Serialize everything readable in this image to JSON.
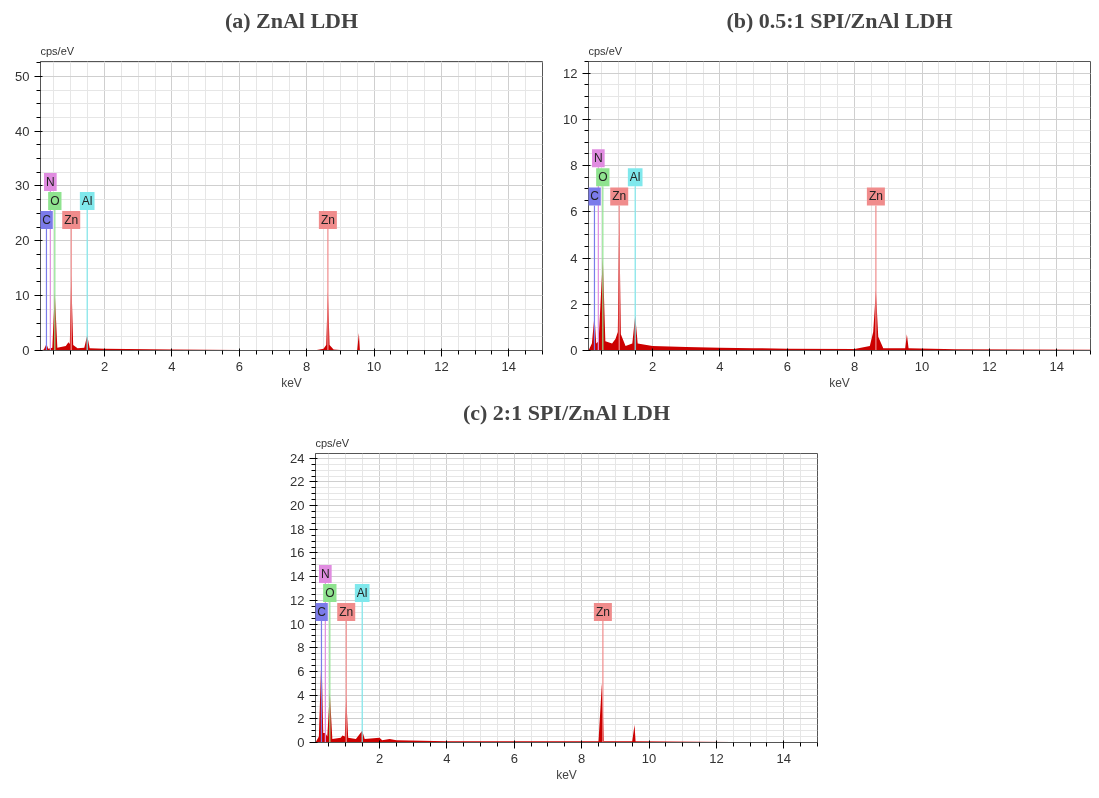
{
  "chart_data": [
    {
      "type": "area",
      "title": "(a) ZnAl LDH",
      "xlabel": "keV",
      "ylabel": "cps/eV",
      "xlim": [
        0.1,
        15
      ],
      "ylim": [
        0,
        52.7
      ],
      "xticks": [
        2,
        4,
        6,
        8,
        10,
        12,
        14
      ],
      "yticks": [
        0,
        10,
        20,
        30,
        40,
        50
      ],
      "grid": true,
      "series": [
        {
          "color": "#cc0000",
          "x": [
            0.1,
            0.2,
            0.277,
            0.33,
            0.45,
            0.525,
            0.6,
            0.85,
            0.93,
            0.97,
            1.012,
            1.07,
            1.2,
            1.4,
            1.486,
            1.56,
            2,
            4,
            6,
            8.3,
            8.5,
            8.58,
            8.63,
            8.68,
            8.8,
            9.0,
            9.5,
            9.55,
            9.58,
            12,
            15
          ],
          "values": [
            0,
            0.2,
            1.2,
            0.3,
            0.5,
            10.5,
            0.5,
            0.8,
            1.5,
            1.2,
            13.8,
            1.0,
            0.4,
            0.5,
            2.8,
            0.4,
            0.3,
            0.2,
            0.1,
            0.1,
            0.3,
            1.0,
            10.8,
            1.0,
            0.2,
            0.1,
            0.1,
            3.2,
            0.1,
            0.1,
            0.1
          ]
        }
      ],
      "ref_lines": [
        {
          "axis": "x",
          "value": 0.277,
          "label": "C",
          "color": "#7b7bea"
        },
        {
          "axis": "x",
          "value": 0.525,
          "label": "O",
          "color": "#8fe38f"
        },
        {
          "axis": "x",
          "value": 0.392,
          "label": "N",
          "color": "#e08ce0"
        },
        {
          "axis": "x",
          "value": 1.012,
          "label": "Zn",
          "color": "#f08c8c"
        },
        {
          "axis": "x",
          "value": 1.486,
          "label": "Al",
          "color": "#80e8ec"
        },
        {
          "axis": "x",
          "value": 8.63,
          "label": "Zn",
          "color": "#f08c8c"
        }
      ]
    },
    {
      "type": "area",
      "title": "(b) 0.5:1 SPI/ZnAl LDH",
      "xlabel": "keV",
      "ylabel": "cps/eV",
      "xlim": [
        0.1,
        15
      ],
      "ylim": [
        0,
        12.5
      ],
      "xticks": [
        2,
        4,
        6,
        8,
        10,
        12,
        14
      ],
      "yticks": [
        0,
        2,
        4,
        6,
        8,
        10,
        12
      ],
      "grid": true,
      "series": [
        {
          "color": "#cc0000",
          "x": [
            0.1,
            0.2,
            0.277,
            0.33,
            0.4,
            0.525,
            0.6,
            0.8,
            0.9,
            0.97,
            1.012,
            1.06,
            1.2,
            1.4,
            1.486,
            1.56,
            2,
            3,
            4,
            5,
            6,
            8,
            8.45,
            8.55,
            8.63,
            8.7,
            8.85,
            9.5,
            9.55,
            9.6,
            11,
            15
          ],
          "values": [
            0,
            0.3,
            1.5,
            0.3,
            0.4,
            4.0,
            0.4,
            0.3,
            0.5,
            0.8,
            5.9,
            0.7,
            0.2,
            0.3,
            1.5,
            0.3,
            0.2,
            0.15,
            0.12,
            0.1,
            0.08,
            0.07,
            0.2,
            0.8,
            2.6,
            0.6,
            0.1,
            0.1,
            0.7,
            0.1,
            0.05,
            0.03
          ]
        }
      ],
      "ref_lines": [
        {
          "axis": "x",
          "value": 0.277,
          "label": "C",
          "color": "#7b7bea"
        },
        {
          "axis": "x",
          "value": 0.525,
          "label": "O",
          "color": "#8fe38f"
        },
        {
          "axis": "x",
          "value": 0.392,
          "label": "N",
          "color": "#e08ce0"
        },
        {
          "axis": "x",
          "value": 1.012,
          "label": "Zn",
          "color": "#f08c8c"
        },
        {
          "axis": "x",
          "value": 1.486,
          "label": "Al",
          "color": "#80e8ec"
        },
        {
          "axis": "x",
          "value": 8.63,
          "label": "Zn",
          "color": "#f08c8c"
        }
      ]
    },
    {
      "type": "area",
      "title": "(c) 2:1 SPI/ZnAl LDH",
      "xlabel": "keV",
      "ylabel": "cps/eV",
      "xlim": [
        0.1,
        15
      ],
      "ylim": [
        0,
        24.4
      ],
      "xticks": [
        2,
        4,
        6,
        8,
        10,
        12,
        14
      ],
      "yticks": [
        0,
        2,
        4,
        6,
        8,
        10,
        12,
        14,
        16,
        18,
        20,
        22,
        24
      ],
      "grid": true,
      "series": [
        {
          "color": "#cc0000",
          "x": [
            0.1,
            0.2,
            0.277,
            0.33,
            0.392,
            0.45,
            0.525,
            0.6,
            0.85,
            0.9,
            0.97,
            1.012,
            1.07,
            1.3,
            1.486,
            1.56,
            2.0,
            2.08,
            2.3,
            2.5,
            4,
            8.5,
            8.6,
            8.66,
            9.5,
            9.57,
            9.6,
            15
          ],
          "values": [
            0,
            0.5,
            7.5,
            0.8,
            0.8,
            0.5,
            4.2,
            0.3,
            0.4,
            0.6,
            0.5,
            3.9,
            0.4,
            0.3,
            1.0,
            0.3,
            0.4,
            0.2,
            0.3,
            0.2,
            0.1,
            0.1,
            5.0,
            0.1,
            0.1,
            1.5,
            0.1,
            0
          ]
        }
      ],
      "ref_lines": [
        {
          "axis": "x",
          "value": 0.277,
          "label": "C",
          "color": "#7b7bea"
        },
        {
          "axis": "x",
          "value": 0.525,
          "label": "O",
          "color": "#8fe38f"
        },
        {
          "axis": "x",
          "value": 0.392,
          "label": "N",
          "color": "#e08ce0"
        },
        {
          "axis": "x",
          "value": 1.012,
          "label": "Zn",
          "color": "#f08c8c"
        },
        {
          "axis": "x",
          "value": 1.486,
          "label": "Al",
          "color": "#80e8ec"
        },
        {
          "axis": "x",
          "value": 8.63,
          "label": "Zn",
          "color": "#f08c8c"
        }
      ]
    }
  ]
}
